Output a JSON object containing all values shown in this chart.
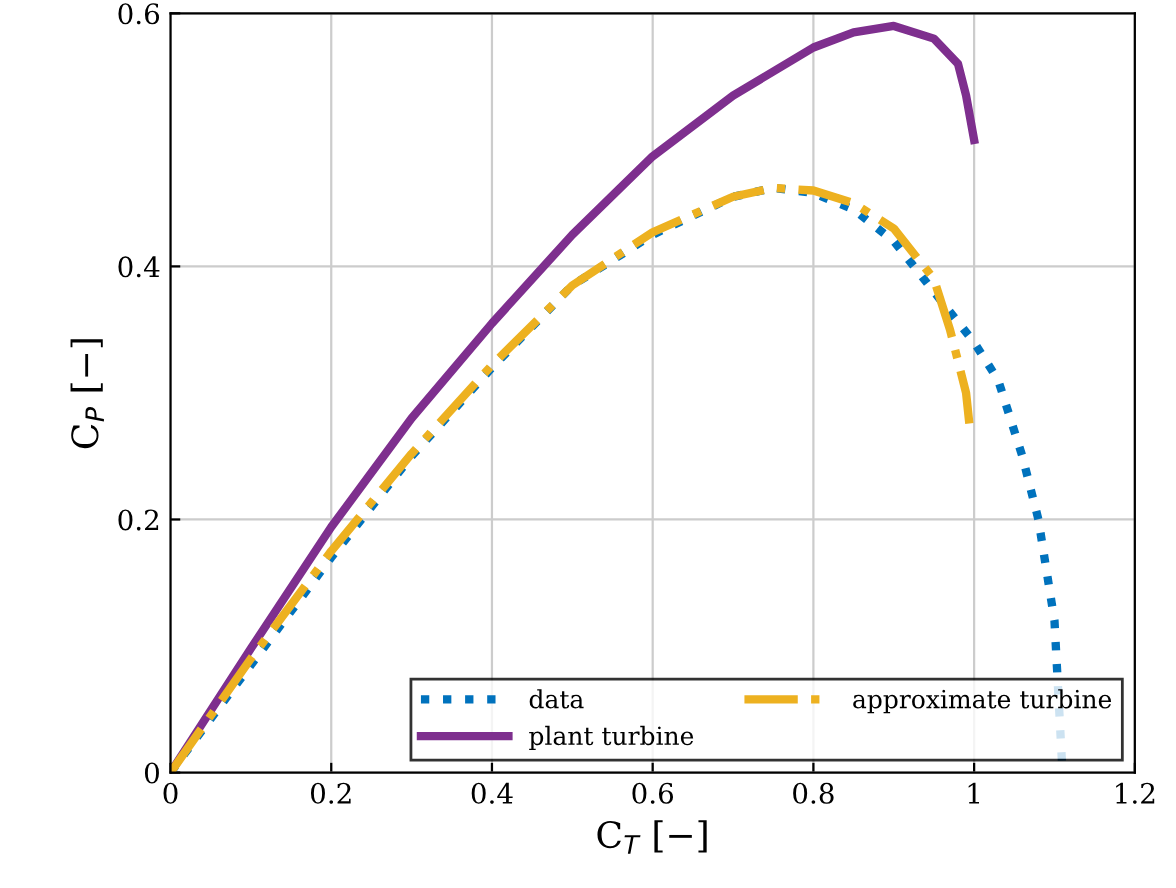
{
  "chart_data": {
    "type": "line",
    "xlabel": "C$_{T}$ [−]",
    "ylabel": "C$_{P}$ [−]",
    "xlim": [
      0,
      1.2
    ],
    "xticks": [
      0,
      0.2,
      0.4,
      0.6,
      0.8,
      1,
      1.2
    ],
    "ylim": [
      0,
      0.6
    ],
    "yticks": [
      0,
      0.2,
      0.4,
      0.6
    ],
    "grid": true,
    "legend": "bottom right",
    "series": [
      {
        "name": "data",
        "color": "#0072bd",
        "line_style": "dotted",
        "x": [
          0,
          0.1,
          0.2,
          0.3,
          0.4,
          0.5,
          0.6,
          0.7,
          0.75,
          0.8,
          0.85,
          0.9,
          0.95,
          1.0,
          1.03,
          1.06,
          1.08,
          1.1,
          1.11
        ],
        "values": [
          0,
          0.085,
          0.17,
          0.25,
          0.32,
          0.385,
          0.425,
          0.455,
          0.462,
          0.458,
          0.445,
          0.42,
          0.38,
          0.34,
          0.31,
          0.25,
          0.2,
          0.12,
          0
        ]
      },
      {
        "name": "plant turbine",
        "color": "#7e2f8e",
        "line_style": "solid",
        "x": [
          0,
          0.1,
          0.2,
          0.3,
          0.4,
          0.5,
          0.6,
          0.7,
          0.8,
          0.85,
          0.9,
          0.95,
          0.98,
          0.99,
          1.0
        ],
        "values": [
          0,
          0.098,
          0.194,
          0.28,
          0.355,
          0.425,
          0.487,
          0.535,
          0.573,
          0.585,
          0.59,
          0.58,
          0.56,
          0.535,
          0.5
        ]
      },
      {
        "name": "approximate turbine",
        "color": "#edb120",
        "line_style": "dashdot",
        "x": [
          0,
          0.1,
          0.2,
          0.3,
          0.4,
          0.5,
          0.6,
          0.7,
          0.75,
          0.8,
          0.85,
          0.9,
          0.95,
          0.97,
          0.99,
          0.995
        ],
        "values": [
          0,
          0.09,
          0.175,
          0.252,
          0.322,
          0.385,
          0.427,
          0.455,
          0.462,
          0.46,
          0.45,
          0.43,
          0.39,
          0.35,
          0.3,
          0.27
        ]
      }
    ]
  }
}
